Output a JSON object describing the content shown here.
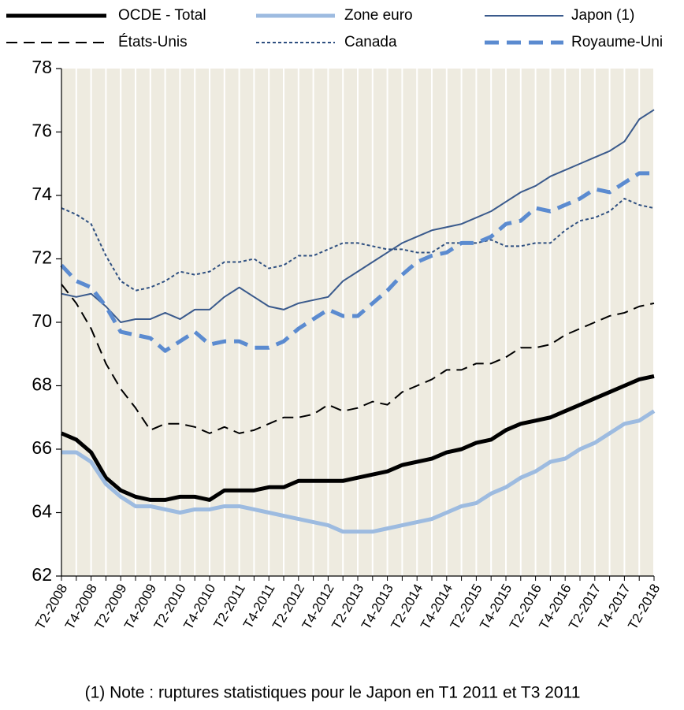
{
  "chart_data": {
    "type": "line",
    "categories": [
      "T2-2008",
      null,
      "T4-2008",
      null,
      "T2-2009",
      null,
      "T4-2009",
      null,
      "T2-2010",
      null,
      "T4-2010",
      null,
      "T2-2011",
      null,
      "T4-2011",
      null,
      "T2-2012",
      null,
      "T4-2012",
      null,
      "T2-2013",
      null,
      "T4-2013",
      null,
      "T2-2014",
      null,
      "T4-2014",
      null,
      "T2-2015",
      null,
      "T4-2015",
      null,
      "T2-2016",
      null,
      "T4-2016",
      null,
      "T2-2017",
      null,
      "T4-2017",
      null,
      "T2-2018"
    ],
    "series": [
      {
        "name": "OCDE - Total",
        "color": "#000000",
        "dash": "solid",
        "values": [
          66.5,
          66.3,
          65.9,
          65.1,
          64.7,
          64.5,
          64.4,
          64.4,
          64.5,
          64.5,
          64.4,
          64.7,
          64.7,
          64.7,
          64.8,
          64.8,
          65.0,
          65.0,
          65.0,
          65.0,
          65.1,
          65.2,
          65.3,
          65.5,
          65.6,
          65.7,
          65.9,
          66.0,
          66.2,
          66.3,
          66.6,
          66.8,
          66.9,
          67.0,
          67.2,
          67.4,
          67.6,
          67.8,
          68.0,
          68.2,
          68.3
        ]
      },
      {
        "name": "Zone euro",
        "color": "#9dbbe0",
        "dash": "solid",
        "values": [
          65.9,
          65.9,
          65.6,
          64.9,
          64.5,
          64.2,
          64.2,
          64.1,
          64.0,
          64.1,
          64.1,
          64.2,
          64.2,
          64.1,
          64.0,
          63.9,
          63.8,
          63.7,
          63.6,
          63.4,
          63.4,
          63.4,
          63.5,
          63.6,
          63.7,
          63.8,
          64.0,
          64.2,
          64.3,
          64.6,
          64.8,
          65.1,
          65.3,
          65.6,
          65.7,
          66.0,
          66.2,
          66.5,
          66.8,
          66.9,
          67.2
        ]
      },
      {
        "name": "Japon (1)",
        "color": "#3a5a8c",
        "dash": "solid",
        "values": [
          70.9,
          70.8,
          70.9,
          70.5,
          70.0,
          70.1,
          70.1,
          70.3,
          70.1,
          70.4,
          70.4,
          70.8,
          71.1,
          70.8,
          70.5,
          70.4,
          70.6,
          70.7,
          70.8,
          71.3,
          71.6,
          71.9,
          72.2,
          72.5,
          72.7,
          72.9,
          73.0,
          73.1,
          73.3,
          73.5,
          73.8,
          74.1,
          74.3,
          74.6,
          74.8,
          75.0,
          75.2,
          75.4,
          75.7,
          76.4,
          76.7
        ]
      },
      {
        "name": "États-Unis",
        "color": "#000000",
        "dash": "dash",
        "values": [
          71.2,
          70.6,
          69.8,
          68.7,
          67.9,
          67.3,
          66.6,
          66.8,
          66.8,
          66.7,
          66.5,
          66.7,
          66.5,
          66.6,
          66.8,
          67.0,
          67.0,
          67.1,
          67.4,
          67.2,
          67.3,
          67.5,
          67.4,
          67.8,
          68.0,
          68.2,
          68.5,
          68.5,
          68.7,
          68.7,
          68.9,
          69.2,
          69.2,
          69.3,
          69.6,
          69.8,
          70.0,
          70.2,
          70.3,
          70.5,
          70.6
        ]
      },
      {
        "name": "Canada",
        "color": "#2e4f80",
        "dash": "dot",
        "values": [
          73.6,
          73.4,
          73.1,
          72.1,
          71.3,
          71.0,
          71.1,
          71.3,
          71.6,
          71.5,
          71.6,
          71.9,
          71.9,
          72.0,
          71.7,
          71.8,
          72.1,
          72.1,
          72.3,
          72.5,
          72.5,
          72.4,
          72.3,
          72.3,
          72.2,
          72.2,
          72.5,
          72.5,
          72.5,
          72.6,
          72.4,
          72.4,
          72.5,
          72.5,
          72.9,
          73.2,
          73.3,
          73.5,
          73.9,
          73.7,
          73.6
        ]
      },
      {
        "name": "Royaume-Uni",
        "color": "#5b8bd0",
        "dash": "dash",
        "values": [
          71.8,
          71.3,
          71.1,
          70.5,
          69.7,
          69.6,
          69.5,
          69.1,
          69.4,
          69.7,
          69.3,
          69.4,
          69.4,
          69.2,
          69.2,
          69.4,
          69.8,
          70.1,
          70.4,
          70.2,
          70.2,
          70.6,
          71.0,
          71.5,
          71.9,
          72.1,
          72.2,
          72.5,
          72.5,
          72.7,
          73.1,
          73.2,
          73.6,
          73.5,
          73.7,
          73.9,
          74.2,
          74.1,
          74.4,
          74.7,
          74.7
        ]
      }
    ],
    "ylim": [
      62,
      78
    ],
    "yticks": [
      62,
      64,
      66,
      68,
      70,
      72,
      74,
      76,
      78
    ],
    "grid": true,
    "legend": "top",
    "note": "(1) Note : ruptures statistiques pour le Japon en T1 2011 et T3 2011"
  }
}
